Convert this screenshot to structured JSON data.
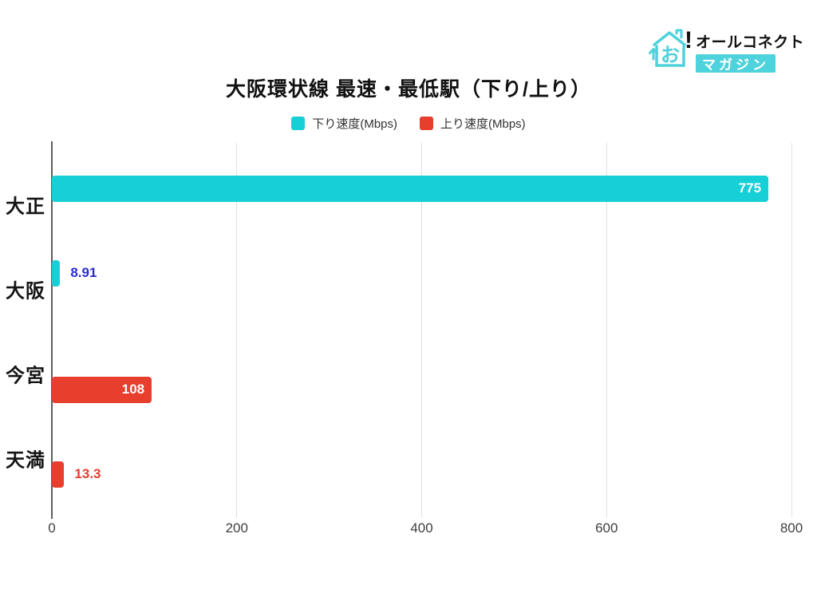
{
  "logo": {
    "icon": "house-icon",
    "icon_char": "お",
    "exclaim": "!",
    "line1": "オールコネクト",
    "badge": "マガジン",
    "teal": "#4ed2dc",
    "text_color": "#111111"
  },
  "chart_data": {
    "type": "bar",
    "orientation": "horizontal",
    "title": "大阪環状線 最速・最低駅（下り/上り）",
    "categories": [
      "大正",
      "大阪",
      "今宮",
      "天満"
    ],
    "series": [
      {
        "name": "下り速度(Mbps)",
        "color": "#17cfd7",
        "values": [
          775,
          8.91,
          null,
          null
        ]
      },
      {
        "name": "上り速度(Mbps)",
        "color": "#e73e2d",
        "values": [
          null,
          null,
          108,
          13.3
        ]
      }
    ],
    "value_labels": [
      "775",
      "8.91",
      "108",
      "13.3"
    ],
    "outside_label_colors": [
      "#2b2bd2",
      "#e73e2d"
    ],
    "inside_label_color": "#ffffff",
    "xlabel": "",
    "ylabel": "",
    "xlim": [
      0,
      800
    ],
    "xticks": [
      0,
      200,
      400,
      600,
      800
    ],
    "grid": true,
    "legend_position": "top",
    "axis_color": "#5e5e5e",
    "gridline_color": "#e1e1e1",
    "tick_label_color": "#3f3f3f"
  }
}
